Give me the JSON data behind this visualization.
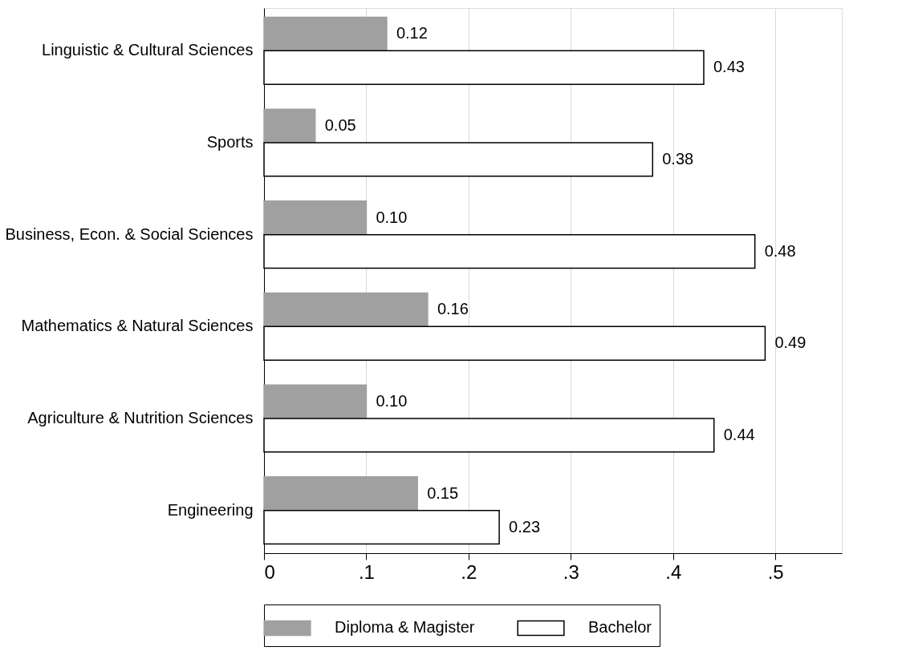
{
  "chart_data": {
    "type": "bar",
    "orientation": "horizontal",
    "categories": [
      "Linguistic & Cultural Sciences",
      "Sports",
      "Business, Econ. & Social Sciences",
      "Mathematics & Natural Sciences",
      "Agriculture & Nutrition Sciences",
      "Engineering"
    ],
    "series": [
      {
        "name": "Diploma & Magister",
        "color": "#a0a0a0",
        "values": [
          0.12,
          0.05,
          0.1,
          0.16,
          0.1,
          0.15
        ],
        "value_labels": [
          "0.12",
          "0.05",
          "0.10",
          "0.16",
          "0.10",
          "0.15"
        ]
      },
      {
        "name": "Bachelor",
        "color": "#ffffff",
        "values": [
          0.43,
          0.38,
          0.48,
          0.49,
          0.44,
          0.23
        ],
        "value_labels": [
          "0.43",
          "0.38",
          "0.48",
          "0.49",
          "0.44",
          "0.23"
        ]
      }
    ],
    "xlim": [
      0,
      0.565
    ],
    "xticks": [
      0,
      {
        "value": 0.1,
        "label": ".1"
      },
      {
        "value": 0.2,
        "label": ".2"
      },
      {
        "value": 0.3,
        "label": ".3"
      },
      {
        "value": 0.4,
        "label": ".4"
      },
      {
        "value": 0.5,
        "label": ".5"
      }
    ],
    "grid": "x",
    "legend": "bottom"
  }
}
